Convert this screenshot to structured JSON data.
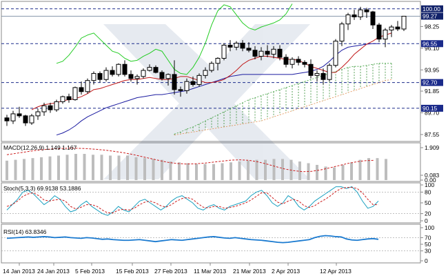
{
  "chart_data": [
    {
      "type": "candlestick",
      "panel": "price",
      "title": "",
      "y_ticks": [
        "100.00",
        "99.27",
        "98.25",
        "96.55",
        "96.10",
        "93.95",
        "92.70",
        "91.85",
        "90.15",
        "89.70",
        "87.55"
      ],
      "ylim": [
        87.0,
        100.6
      ],
      "price_tags": [
        {
          "value": "100.00",
          "y": 100.0,
          "style": "dark"
        },
        {
          "value": "99.27",
          "y": 99.27,
          "style": "dark"
        },
        {
          "value": "96.55",
          "y": 96.55,
          "style": "light"
        },
        {
          "value": "92.70",
          "y": 92.7,
          "style": "light"
        },
        {
          "value": "90.15",
          "y": 90.15,
          "style": "light"
        }
      ],
      "h_lines": [
        100.0,
        96.55,
        92.7,
        90.15
      ],
      "candles": [
        [
          89.2,
          89.5,
          88.4,
          88.9
        ],
        [
          88.9,
          89.9,
          88.6,
          89.6
        ],
        [
          89.6,
          90.3,
          89.2,
          89.4
        ],
        [
          89.4,
          89.5,
          88.4,
          88.7
        ],
        [
          88.7,
          89.6,
          88.5,
          89.4
        ],
        [
          89.4,
          90.1,
          89.0,
          89.8
        ],
        [
          89.8,
          90.7,
          89.4,
          90.4
        ],
        [
          90.4,
          90.7,
          89.7,
          90.0
        ],
        [
          90.0,
          91.0,
          89.8,
          90.8
        ],
        [
          90.8,
          91.4,
          90.6,
          91.3
        ],
        [
          91.3,
          91.6,
          90.7,
          91.0
        ],
        [
          91.0,
          92.3,
          90.9,
          92.2
        ],
        [
          92.2,
          92.8,
          91.5,
          91.8
        ],
        [
          91.8,
          93.1,
          91.6,
          92.9
        ],
        [
          92.9,
          93.8,
          92.5,
          93.6
        ],
        [
          93.6,
          93.8,
          92.7,
          93.0
        ],
        [
          93.0,
          94.2,
          92.8,
          93.9
        ],
        [
          93.9,
          94.3,
          93.3,
          93.5
        ],
        [
          93.5,
          94.6,
          93.3,
          94.5
        ],
        [
          94.5,
          94.9,
          93.3,
          93.5
        ],
        [
          93.5,
          93.9,
          92.8,
          93.1
        ],
        [
          93.1,
          93.5,
          92.5,
          93.3
        ],
        [
          93.3,
          94.1,
          93.1,
          93.9
        ],
        [
          93.9,
          94.5,
          93.8,
          94.2
        ],
        [
          94.2,
          94.4,
          93.6,
          93.7
        ],
        [
          93.7,
          93.9,
          92.9,
          93.1
        ],
        [
          93.1,
          93.6,
          92.4,
          93.5
        ],
        [
          93.5,
          94.9,
          91.5,
          92.0
        ],
        [
          92.0,
          92.3,
          91.3,
          91.9
        ],
        [
          91.9,
          93.1,
          91.6,
          92.8
        ],
        [
          92.8,
          93.3,
          92.3,
          92.5
        ],
        [
          92.5,
          93.6,
          92.3,
          93.4
        ],
        [
          93.4,
          94.2,
          93.1,
          93.9
        ],
        [
          93.9,
          94.8,
          93.7,
          94.6
        ],
        [
          94.6,
          95.2,
          93.9,
          95.1
        ],
        [
          95.1,
          96.6,
          94.9,
          96.4
        ],
        [
          96.4,
          96.9,
          95.8,
          96.2
        ],
        [
          96.2,
          96.8,
          95.9,
          96.6
        ],
        [
          96.6,
          96.9,
          95.8,
          96.1
        ],
        [
          96.1,
          96.7,
          95.7,
          95.9
        ],
        [
          95.9,
          96.3,
          95.0,
          95.3
        ],
        [
          95.3,
          96.2,
          94.9,
          95.8
        ],
        [
          95.8,
          96.4,
          95.2,
          95.5
        ],
        [
          95.5,
          96.3,
          95.1,
          96.0
        ],
        [
          96.0,
          96.4,
          94.9,
          95.2
        ],
        [
          95.2,
          95.5,
          94.2,
          94.5
        ],
        [
          94.5,
          95.2,
          94.1,
          95.0
        ],
        [
          95.0,
          95.3,
          94.4,
          94.7
        ],
        [
          94.7,
          94.9,
          94.2,
          94.5
        ],
        [
          94.5,
          95.0,
          93.1,
          93.4
        ],
        [
          93.4,
          93.9,
          92.8,
          93.6
        ],
        [
          93.6,
          94.1,
          92.5,
          93.0
        ],
        [
          93.0,
          94.6,
          92.8,
          94.4
        ],
        [
          94.4,
          97.0,
          94.2,
          96.8
        ],
        [
          96.8,
          98.7,
          96.3,
          98.5
        ],
        [
          98.5,
          99.6,
          97.9,
          99.4
        ],
        [
          99.4,
          99.9,
          98.9,
          99.2
        ],
        [
          99.2,
          100.2,
          98.9,
          99.9
        ],
        [
          99.9,
          100.1,
          99.1,
          99.7
        ],
        [
          99.7,
          99.8,
          98.0,
          98.4
        ],
        [
          98.4,
          98.6,
          96.7,
          97.0
        ],
        [
          97.0,
          98.1,
          96.2,
          97.9
        ],
        [
          97.9,
          98.4,
          97.2,
          98.2
        ],
        [
          98.2,
          98.8,
          97.8,
          98.0
        ],
        [
          98.0,
          99.3,
          97.8,
          99.27
        ]
      ],
      "tenkan": [
        90.0,
        90.3,
        90.5,
        90.6,
        90.7,
        90.9,
        91.0,
        91.1,
        91.3,
        91.6,
        92.0,
        92.1,
        92.3,
        92.5,
        92.7,
        92.9,
        93.0,
        93.0,
        93.1,
        93.2,
        93.1,
        93.0,
        93.0,
        93.1,
        93.3,
        93.3,
        93.1,
        92.9,
        92.7,
        92.7,
        92.8,
        93.0,
        93.4,
        93.9,
        94.5,
        94.9,
        95.1,
        95.3,
        95.3,
        95.2,
        95.1,
        95.0,
        95.0,
        94.9,
        94.6,
        94.3,
        94.1,
        93.9,
        93.7,
        93.7,
        94.2,
        94.8,
        95.5,
        96.0,
        96.5,
        96.8,
        97.2,
        97.4,
        97.6
      ],
      "kijun": [
        87.5,
        87.7,
        88.0,
        88.4,
        88.9,
        89.3,
        89.6,
        89.9,
        90.2,
        90.4,
        90.6,
        90.8,
        91.0,
        91.2,
        91.3,
        91.4,
        91.5,
        91.5,
        91.6,
        91.7,
        91.8,
        91.9,
        92.1,
        92.3,
        92.5,
        92.7,
        92.9,
        93.1,
        93.3,
        93.4,
        93.5,
        93.5,
        93.5,
        93.5,
        93.5,
        93.5,
        93.5,
        93.5,
        93.5,
        93.6,
        93.7,
        93.8,
        94.0,
        94.3,
        94.8,
        95.4,
        95.9,
        96.2,
        96.3,
        96.4,
        96.5,
        96.55,
        96.55
      ],
      "chikou": [
        94.6,
        94.8,
        95.4,
        96.2,
        97.1,
        97.4,
        97.6,
        97.0,
        96.4,
        95.8,
        95.6,
        95.1,
        94.8,
        94.9,
        95.3,
        95.6,
        96.0,
        95.8,
        94.9,
        94.0,
        93.6,
        93.5,
        94.2,
        95.2,
        96.6,
        98.4,
        99.8,
        100.4,
        100.2,
        99.4,
        98.6,
        98.1,
        97.9,
        98.2,
        98.4,
        98.6,
        98.9,
        99.5,
        100.5
      ],
      "span_a": [
        87.6,
        87.8,
        88.1,
        88.3,
        88.6,
        88.9,
        89.2,
        89.5,
        89.8,
        90.1,
        90.4,
        90.7,
        91.0,
        91.2,
        91.4,
        91.6,
        91.8,
        92.0,
        92.2,
        92.4,
        92.6,
        92.8,
        93.0,
        93.2,
        93.4,
        93.6,
        93.8,
        94.0,
        94.2,
        94.3,
        94.3,
        94.4,
        94.5,
        94.6,
        94.6,
        94.6
      ],
      "span_b": [
        87.5,
        87.6,
        87.7,
        87.8,
        87.9,
        88.0,
        88.1,
        88.2,
        88.3,
        88.4,
        88.5,
        88.6,
        88.7,
        88.8,
        88.9,
        89.1,
        89.3,
        89.5,
        89.7,
        89.9,
        90.1,
        90.3,
        90.5,
        90.7,
        90.9,
        91.1,
        91.3,
        91.5,
        91.7,
        91.9,
        92.1,
        92.3,
        92.5,
        92.7,
        92.9,
        93.0
      ],
      "x_labels": [
        "14 Jan 2013",
        "24 Jan 2013",
        "5 Feb 2013",
        "15 Feb 2013",
        "27 Feb 2013",
        "11 Mar 2013",
        "21 Mar 2013",
        "2 Apr 2013",
        "12 Apr 2013"
      ]
    },
    {
      "type": "bar+line",
      "panel": "macd",
      "label": "MACD(12,26,9) 1.149 1.167",
      "y_ticks": [
        "1.909",
        "0.083",
        "0.00"
      ],
      "ylim": [
        0,
        2.0
      ],
      "histogram": [
        1.15,
        1.2,
        1.25,
        1.3,
        1.35,
        1.4,
        1.45,
        1.5,
        1.55,
        1.55,
        1.5,
        1.5,
        1.45,
        1.45,
        1.45,
        1.35,
        1.3,
        1.25,
        1.2,
        1.1,
        1.05,
        1.0,
        0.95,
        0.95,
        0.95,
        1.0,
        1.05,
        1.1,
        1.15,
        1.2,
        1.2,
        1.25,
        1.25,
        1.2,
        1.1,
        1.0,
        0.9,
        0.8,
        0.75,
        0.9,
        1.05,
        1.2,
        1.3,
        1.3,
        1.25
      ],
      "signal": [
        1.5,
        1.58,
        1.66,
        1.74,
        1.8,
        1.84,
        1.87,
        1.89,
        1.88,
        1.86,
        1.82,
        1.77,
        1.7,
        1.62,
        1.52,
        1.4,
        1.28,
        1.16,
        1.05,
        0.98,
        0.95,
        0.96,
        1.0,
        1.06,
        1.12,
        1.18,
        1.2,
        1.17,
        1.08,
        0.95,
        0.8,
        0.66,
        0.56,
        0.5,
        0.52,
        0.6,
        0.72,
        0.85,
        0.98,
        1.08,
        1.15,
        1.17
      ]
    },
    {
      "type": "line",
      "panel": "stoch",
      "label": "Stoch(5,3,3) 69.9138 53.1886",
      "y_ticks": [
        "100",
        "80",
        "50",
        "20",
        "0"
      ],
      "ylim": [
        0,
        100
      ],
      "k": [
        30,
        45,
        60,
        80,
        85,
        75,
        60,
        45,
        55,
        70,
        60,
        40,
        25,
        30,
        45,
        55,
        40,
        30,
        20,
        15,
        25,
        40,
        30,
        25,
        40,
        55,
        60,
        50,
        40,
        30,
        40,
        55,
        65,
        70,
        60,
        50,
        35,
        30,
        40,
        45,
        35,
        30,
        40,
        45,
        50,
        55,
        70,
        80,
        85,
        70,
        50,
        40,
        50,
        70,
        60,
        40,
        30,
        40,
        55,
        65,
        75,
        85,
        95,
        95,
        90,
        95,
        80,
        55,
        35,
        40,
        55,
        70
      ],
      "d": [
        40,
        45,
        55,
        68,
        75,
        78,
        70,
        58,
        55,
        58,
        60,
        55,
        40,
        33,
        38,
        45,
        45,
        40,
        30,
        22,
        22,
        30,
        32,
        30,
        35,
        45,
        52,
        55,
        50,
        42,
        38,
        45,
        55,
        62,
        65,
        60,
        48,
        38,
        36,
        40,
        40,
        35,
        37,
        40,
        45,
        50,
        58,
        68,
        78,
        78,
        65,
        52,
        47,
        55,
        60,
        55,
        42,
        37,
        42,
        52,
        60,
        70,
        82,
        90,
        93,
        93,
        90,
        78,
        60,
        45,
        45,
        53
      ]
    },
    {
      "type": "line",
      "panel": "rsi",
      "label": "RSI(14) 63.8346",
      "y_ticks": [
        "100",
        "70",
        "50",
        "30",
        "0"
      ],
      "ylim": [
        0,
        100
      ],
      "values": [
        68,
        69,
        70,
        71,
        72,
        71,
        72,
        73,
        72,
        70,
        71,
        72,
        70,
        69,
        68,
        70,
        69,
        67,
        65,
        66,
        64,
        63,
        62,
        62,
        63,
        64,
        62,
        60,
        58,
        60,
        62,
        64,
        63,
        62,
        64,
        66,
        68,
        70,
        72,
        73,
        71,
        69,
        68,
        70,
        68,
        66,
        64,
        63,
        62,
        60,
        58,
        56,
        55,
        56,
        58,
        60,
        62,
        64,
        70,
        74,
        76,
        75,
        73,
        72,
        66,
        63,
        62,
        64,
        66,
        67,
        65,
        64
      ]
    }
  ]
}
